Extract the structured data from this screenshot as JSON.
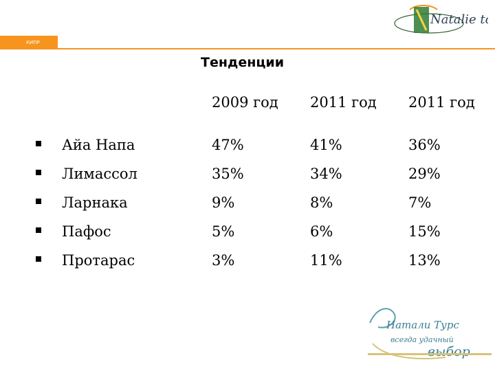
{
  "header": {
    "section_tag": "КИПР",
    "title": "Тенденции",
    "accent_color": "#f7941d"
  },
  "logos": {
    "top": {
      "brand": "Natalie tours",
      "icon": "natalie-tours-logo-icon"
    },
    "bottom": {
      "line1": "Натали Турс",
      "line2": "всегда удачный",
      "line3": "выбор",
      "icon": "natalie-tours-slogan-logo-icon"
    }
  },
  "table": {
    "columns": [
      "2009 год",
      "2011 год",
      "2011 год"
    ],
    "rows": [
      {
        "label": "Айа Напа",
        "values": [
          "47%",
          "41%",
          "36%"
        ]
      },
      {
        "label": "Лимассол",
        "values": [
          "35%",
          "34%",
          "29%"
        ]
      },
      {
        "label": "Ларнака",
        "values": [
          "9%",
          "8%",
          "7%"
        ]
      },
      {
        "label": "Пафос",
        "values": [
          "5%",
          "6%",
          "15%"
        ]
      },
      {
        "label": "Протарас",
        "values": [
          "3%",
          "11%",
          "13%"
        ]
      }
    ]
  }
}
